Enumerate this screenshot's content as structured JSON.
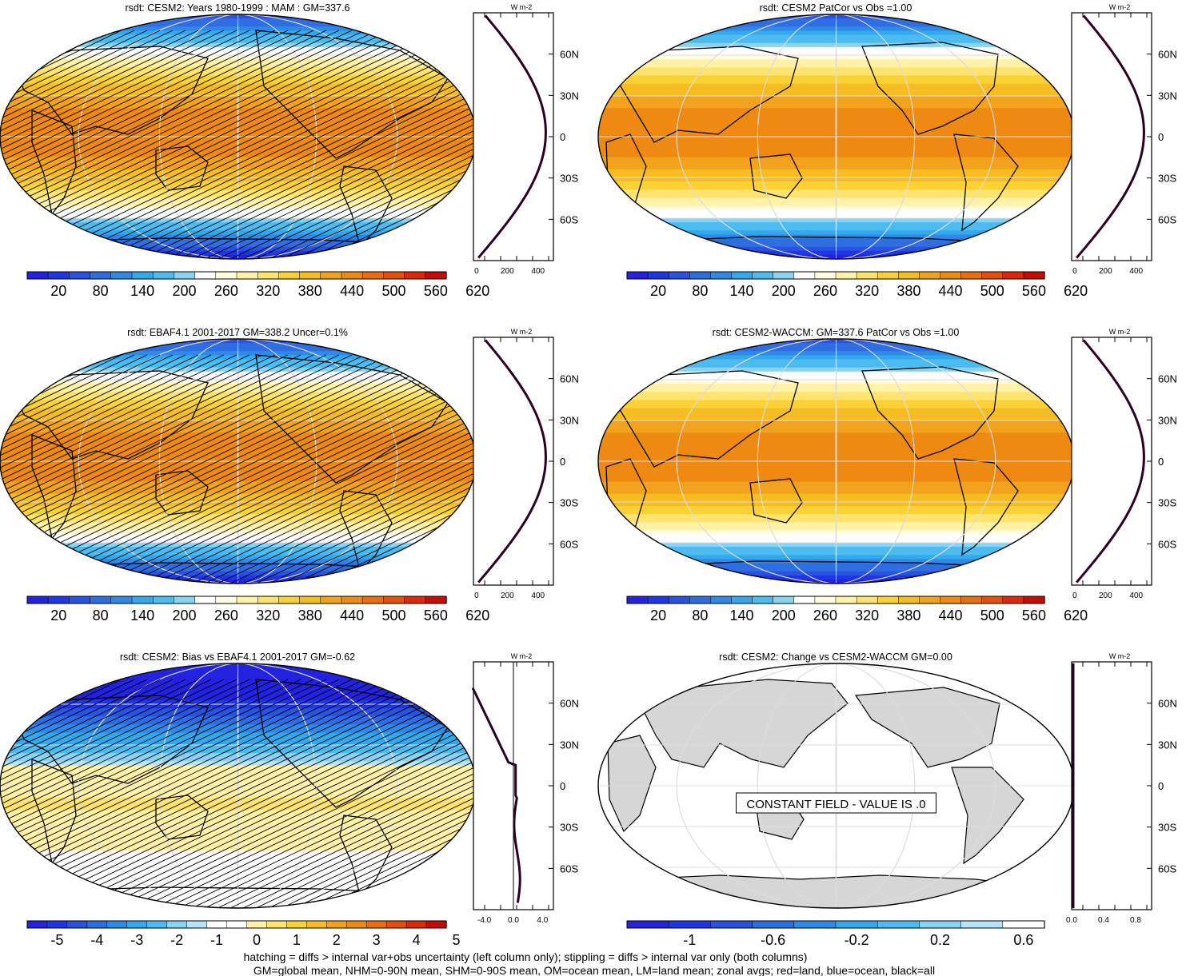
{
  "panels": [
    {
      "id": "cesm2-climo",
      "title": "rsdt: CESM2: Years 1980-1999 : MAM : GM=337.6",
      "map": "absolute",
      "hatching": true,
      "center": "atlantic",
      "colorbar": {
        "labels": [
          "20",
          "80",
          "140",
          "200",
          "260",
          "320",
          "380",
          "440",
          "500",
          "560",
          "620"
        ],
        "palette": "absolute"
      },
      "zonal": {
        "unit": "W m-2",
        "xticks": [
          "0",
          "200",
          "400"
        ],
        "xrange": [
          -20,
          500
        ],
        "yticks": [
          "60N",
          "30N",
          "0",
          "30S",
          "60S"
        ],
        "profile": "absolute"
      }
    },
    {
      "id": "cesm2-patcor",
      "title": "rsdt: CESM2 PatCor vs Obs =1.00",
      "map": "absolute",
      "hatching": false,
      "center": "pacific",
      "colorbar": {
        "labels": [
          "20",
          "80",
          "140",
          "200",
          "260",
          "320",
          "380",
          "440",
          "500",
          "560",
          "620"
        ],
        "palette": "absolute"
      },
      "zonal": {
        "unit": "W m-2",
        "xticks": [
          "0",
          "200",
          "400"
        ],
        "xrange": [
          -20,
          500
        ],
        "yticks": [
          "60N",
          "30N",
          "0",
          "30S",
          "60S"
        ],
        "profile": "absolute"
      }
    },
    {
      "id": "ebaf-obs",
      "title": "rsdt: EBAF4.1 2001-2017 GM=338.2 Uncer=0.1%",
      "map": "absolute",
      "hatching": true,
      "center": "atlantic",
      "colorbar": {
        "labels": [
          "20",
          "80",
          "140",
          "200",
          "260",
          "320",
          "380",
          "440",
          "500",
          "560",
          "620"
        ],
        "palette": "absolute"
      },
      "zonal": {
        "unit": "W m-2",
        "xticks": [
          "0",
          "200",
          "400"
        ],
        "xrange": [
          -20,
          500
        ],
        "yticks": [
          "60N",
          "30N",
          "0",
          "30S",
          "60S"
        ],
        "profile": "absolute"
      }
    },
    {
      "id": "waccm",
      "title": "rsdt: CESM2-WACCM: GM=337.6 PatCor vs Obs =1.00",
      "map": "absolute",
      "hatching": false,
      "center": "pacific",
      "colorbar": {
        "labels": [
          "20",
          "80",
          "140",
          "200",
          "260",
          "320",
          "380",
          "440",
          "500",
          "560",
          "620"
        ],
        "palette": "absolute"
      },
      "zonal": {
        "unit": "W m-2",
        "xticks": [
          "0",
          "200",
          "400"
        ],
        "xrange": [
          -20,
          500
        ],
        "yticks": [
          "60N",
          "30N",
          "0",
          "30S",
          "60S"
        ],
        "profile": "absolute"
      }
    },
    {
      "id": "bias",
      "title": "rsdt: CESM2: Bias vs EBAF4.1 2001-2017 GM=-0.62",
      "map": "bias",
      "hatching": true,
      "center": "atlantic",
      "colorbar": {
        "labels": [
          "-5",
          "-4",
          "-3",
          "-2",
          "-1",
          "0",
          "1",
          "2",
          "3",
          "4",
          "5"
        ],
        "palette": "bias"
      },
      "zonal": {
        "unit": "W m-2",
        "xticks": [
          "-4.0",
          "0.0",
          "4.0"
        ],
        "xrange": [
          -5.5,
          5.5
        ],
        "yticks": [
          "60N",
          "30N",
          "0",
          "30S",
          "60S"
        ],
        "profile": "bias"
      }
    },
    {
      "id": "change",
      "title": "rsdt: CESM2: Change vs CESM2-WACCM GM=0.00",
      "map": "constant",
      "hatching": false,
      "center": "pacific",
      "note": "CONSTANT FIELD - VALUE IS .0",
      "colorbar": {
        "labels": [
          "-1",
          "-0.6",
          "-0.2",
          "0.2",
          "0.6"
        ],
        "palette": "change"
      },
      "zonal": {
        "unit": "W m-2",
        "xticks": [
          "0.0",
          "0.4",
          "0.8"
        ],
        "xrange": [
          0,
          1.0
        ],
        "yticks": [
          "60N",
          "30N",
          "0",
          "30S",
          "60S"
        ],
        "profile": "zero"
      }
    }
  ],
  "footer": {
    "line1": "hatching = diffs > internal var+obs uncertainty (left column only); stippling = diffs > internal var only (both columns)",
    "line2": "GM=global mean, NHM=0-90N mean, SHM=0-90S mean, OM=ocean mean, LM=land mean; zonal avgs; red=land, blue=ocean, black=all"
  },
  "palettes": {
    "absolute": [
      "#2222e0",
      "#1f36e6",
      "#2a52e0",
      "#2f6ee2",
      "#2e8ae6",
      "#34a8ec",
      "#4cbcf0",
      "#88d2f2",
      "#ffffff",
      "#fffde0",
      "#fff2a8",
      "#fde470",
      "#fbd236",
      "#f5bc24",
      "#f2a21c",
      "#ee8a12",
      "#ea6e0c",
      "#e4500a",
      "#dc2a06",
      "#c80a04"
    ],
    "bias": [
      "#2222e0",
      "#1f36e6",
      "#2a52e0",
      "#2f6ee2",
      "#2e8ae6",
      "#34a8ec",
      "#4cbcf0",
      "#88d2f2",
      "#b6e4f8",
      "#ffffff",
      "#ffffff",
      "#fff2a8",
      "#fde470",
      "#fbd236",
      "#f5bc24",
      "#f2a21c",
      "#ee8a12",
      "#ea6e0c",
      "#e4500a",
      "#dc2a06",
      "#c80a04"
    ],
    "change": [
      "#2222e0",
      "#1f36e6",
      "#2a52e0",
      "#2f6ee2",
      "#2e8ae6",
      "#34a8ec",
      "#4cbcf0",
      "#88d2f2",
      "#b6e4f8",
      "#ffffff"
    ]
  }
}
